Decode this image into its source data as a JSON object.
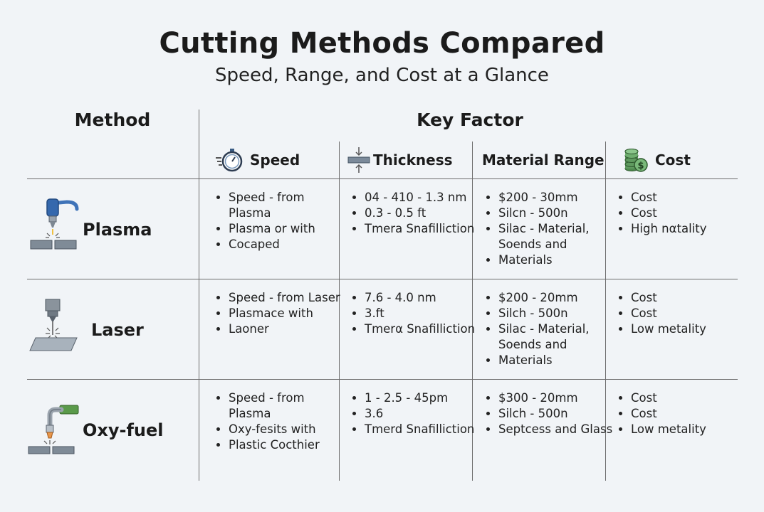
{
  "title": "Cutting Methods Compared",
  "subtitle": "Speed, Range, and Cost at a Glance",
  "headers": {
    "method": "Method",
    "key_factor": "Key Factor",
    "columns": [
      "Speed",
      "Thickness",
      "Material Range",
      "Cost"
    ]
  },
  "rows": [
    {
      "method": "Plasma",
      "icon": "plasma-torch-icon",
      "speed": [
        "Speed - from Plasma",
        "Plasma or with",
        "Cocaped"
      ],
      "thickness": [
        "04 - 410 - 1.3 nm",
        "0.3 - 0.5 ft",
        "Tmera Snafilliction"
      ],
      "material": [
        "$200 - 30mm",
        "Silcn - 500n",
        "Silac - Material, Soends and",
        "Materials"
      ],
      "cost": [
        "Cost",
        "Cost",
        "High nαtality"
      ]
    },
    {
      "method": "Laser",
      "icon": "laser-head-icon",
      "speed": [
        "Speed - from Laser",
        "Plasmace with",
        "Laoner"
      ],
      "thickness": [
        "7.6 - 4.0 nm",
        "3.ft",
        "Tmerα Snafilliction"
      ],
      "material": [
        "$200 - 20mm",
        "Silch - 500n",
        "Silac - Material, Soends and",
        "Materials"
      ],
      "cost": [
        "Cost",
        "Cost",
        "Low metality"
      ]
    },
    {
      "method": "Oxy-fuel",
      "icon": "oxy-fuel-torch-icon",
      "speed": [
        "Speed - from Plasma",
        "Oxy-fesits with",
        "Plastic Cocthier"
      ],
      "thickness": [
        "1 - 2.5 - 45pm",
        "3.6",
        "Tmerd Snafilliction"
      ],
      "material": [
        "$300 - 20mm",
        "Silch - 500n",
        "Septcess and Glass"
      ],
      "cost": [
        "Cost",
        "Cost",
        "Low metality"
      ]
    }
  ]
}
